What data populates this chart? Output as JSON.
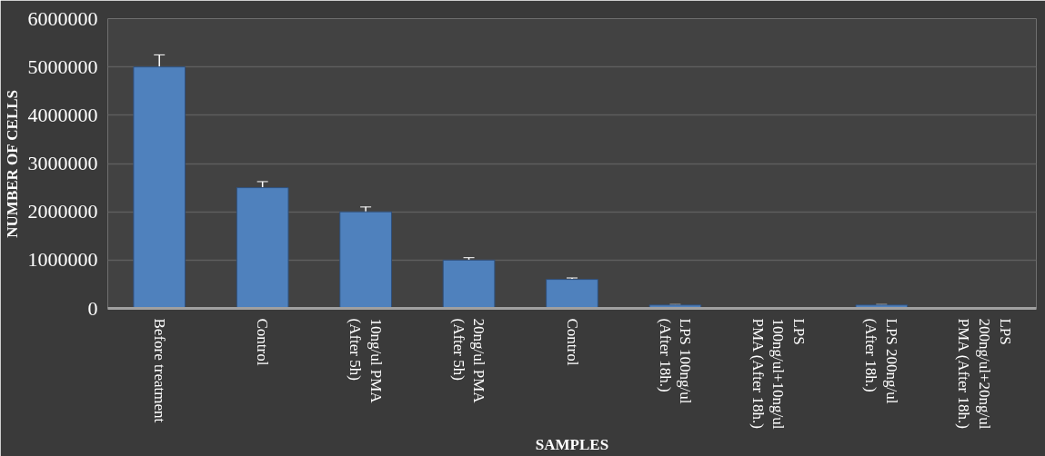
{
  "chart_data": {
    "type": "bar",
    "xlabel": "SAMPLES",
    "ylabel": "NUMBER OF CELLS",
    "categories": [
      "Before treatment",
      "Control",
      "10ng/ul PMA\n(After 5h)",
      "20ng/ul PMA\n(After 5h)",
      "Control",
      "LPS 100ng/ul\n(After 18h.)",
      "LPS\n100ng/ul+10ng/ul\nPMA  (After 18h.)",
      "LPS 200ng/ul\n(After 18h.)",
      "LPS\n200ng/ul+20ng/ul\nPMA  (After 18h.)"
    ],
    "values": [
      5000000,
      2500000,
      2000000,
      1000000,
      600000,
      70000,
      10000,
      70000,
      10000
    ],
    "errors": [
      250000,
      125000,
      100000,
      50000,
      30000,
      10000,
      5000,
      10000,
      5000
    ],
    "color": "#4f81bd",
    "ylim": [
      0,
      6000000
    ],
    "yticks": [
      0,
      1000000,
      2000000,
      3000000,
      4000000,
      5000000,
      6000000
    ],
    "grid": "y"
  }
}
